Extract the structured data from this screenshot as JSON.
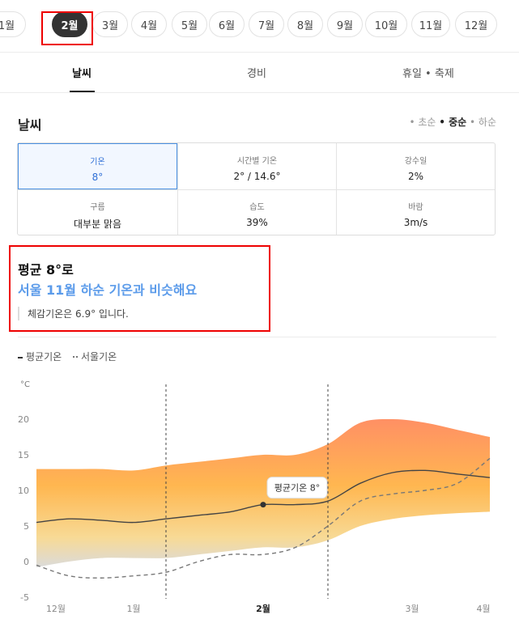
{
  "months": [
    "1월",
    "2월",
    "3월",
    "4월",
    "5월",
    "6월",
    "7월",
    "8월",
    "9월",
    "10월",
    "11월",
    "12월"
  ],
  "selected_month": "2월",
  "tabs": [
    {
      "label": "날씨",
      "active": true
    },
    {
      "label": "경비",
      "active": false
    },
    {
      "label": "휴일 • 축제",
      "active": false
    }
  ],
  "weather": {
    "title": "날씨",
    "periods": {
      "early": "• 초순",
      "mid": "• 중순",
      "late": "• 하순"
    },
    "stats": [
      {
        "label": "기온",
        "value": "8°"
      },
      {
        "label": "시간별 기온",
        "value": "2° / 14.6°"
      },
      {
        "label": "강수일",
        "value": "2%"
      },
      {
        "label": "구름",
        "value": "대부분 맑음"
      },
      {
        "label": "습도",
        "value": "39%"
      },
      {
        "label": "바람",
        "value": "3m/s"
      }
    ]
  },
  "summary": {
    "line1": "평균 8°로",
    "line2": "서울 11월 하순 기온과 비슷해요",
    "feels": "체감기온은 6.9° 입니다."
  },
  "chart_data": {
    "type": "area",
    "ylabel": "°C",
    "yticks": [
      "20",
      "15",
      "10",
      "5",
      "0",
      "-5"
    ],
    "ylim": [
      -5,
      20
    ],
    "xticks": [
      "12월",
      "1월",
      "2월",
      "3월",
      "4월"
    ],
    "x": [
      0,
      0.5,
      1,
      1.5,
      2,
      2.5,
      3,
      3.5,
      4,
      4.5,
      5,
      5.5,
      6,
      6.5,
      7
    ],
    "series": [
      {
        "name": "평균기온",
        "values": [
          5.5,
          6,
          5.8,
          5.5,
          6,
          6.5,
          7,
          8,
          8,
          8.5,
          11,
          12.5,
          12.8,
          12.3,
          11.8
        ]
      },
      {
        "name": "서울기온",
        "values": [
          -0.5,
          -2,
          -2.3,
          -2,
          -1.5,
          0,
          1,
          1,
          2,
          5,
          8.5,
          9.5,
          10,
          11,
          14.5
        ]
      }
    ],
    "range_high": [
      13,
      13,
      13,
      12.8,
      13.5,
      14,
      14.5,
      15,
      15,
      16.5,
      19.5,
      20,
      19.5,
      18.5,
      17.5
    ],
    "range_low": [
      -0.8,
      0,
      0.5,
      0.5,
      0.5,
      1,
      1.5,
      2,
      2,
      3,
      5,
      6,
      6.5,
      6.8,
      7
    ],
    "tooltip": "평균기온 8°",
    "legend": [
      "평균기온",
      "서울기온"
    ]
  }
}
